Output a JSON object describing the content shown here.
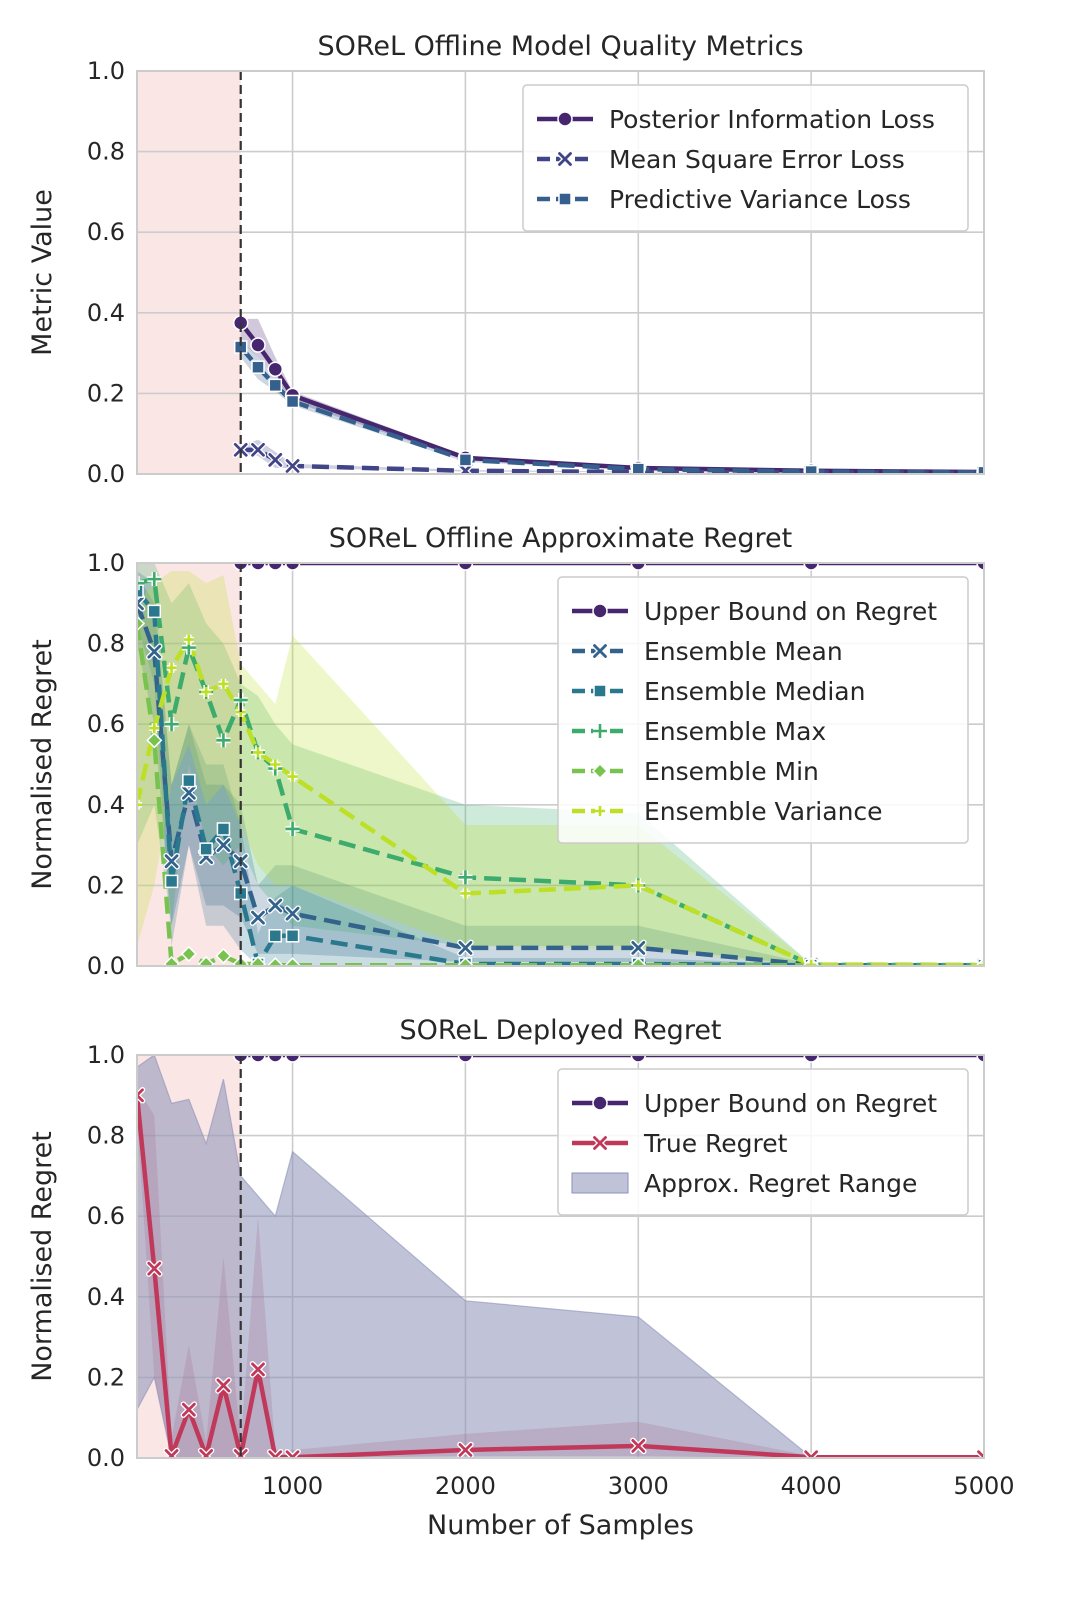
{
  "figure": {
    "xlabel": "Number of Samples",
    "x_ticks": [
      1000,
      2000,
      3000,
      4000,
      5000
    ],
    "xlim": [
      100,
      5000
    ],
    "y_ticks": [
      "0.0",
      "0.2",
      "0.4",
      "0.6",
      "0.8",
      "1.0"
    ],
    "shaded_region_x": [
      100,
      700
    ],
    "vline_x": 700,
    "grid": true,
    "legend_placement": "upper right"
  },
  "chart_data": [
    {
      "type": "line",
      "title": "SOReL Offline Model Quality Metrics",
      "xlabel": "",
      "ylabel": "Metric Value",
      "ylim": [
        0,
        1
      ],
      "series": [
        {
          "name": "Posterior Information Loss",
          "color": "#46276f",
          "marker": "circle",
          "dash": "solid",
          "x": [
            700,
            800,
            900,
            1000,
            2000,
            3000,
            4000,
            5000
          ],
          "y": [
            0.375,
            0.32,
            0.26,
            0.195,
            0.04,
            0.015,
            0.008,
            0.005
          ],
          "band_lo": [
            0.33,
            0.29,
            0.24,
            0.18,
            0.035,
            0.012,
            0.006,
            0.004
          ],
          "band_hi": [
            0.385,
            0.385,
            0.29,
            0.205,
            0.045,
            0.018,
            0.01,
            0.006
          ]
        },
        {
          "name": "Mean Square Error Loss",
          "color": "#414487",
          "marker": "x",
          "dash": "dashed",
          "x": [
            700,
            800,
            900,
            1000,
            2000,
            3000,
            4000,
            5000
          ],
          "y": [
            0.06,
            0.06,
            0.035,
            0.02,
            0.008,
            0.005,
            0.004,
            0.003
          ],
          "band_lo": [
            0.05,
            0.045,
            0.015,
            0.015,
            0.006,
            0.004,
            0.003,
            0.002
          ],
          "band_hi": [
            0.07,
            0.085,
            0.055,
            0.025,
            0.01,
            0.006,
            0.005,
            0.004
          ]
        },
        {
          "name": "Predictive Variance Loss",
          "color": "#355f8d",
          "marker": "square",
          "dash": "dashed",
          "x": [
            700,
            800,
            900,
            1000,
            2000,
            3000,
            4000,
            5000
          ],
          "y": [
            0.315,
            0.265,
            0.22,
            0.18,
            0.035,
            0.012,
            0.006,
            0.004
          ],
          "band_lo": [
            0.29,
            0.235,
            0.205,
            0.17,
            0.03,
            0.01,
            0.005,
            0.003
          ],
          "band_hi": [
            0.335,
            0.29,
            0.24,
            0.19,
            0.04,
            0.014,
            0.007,
            0.005
          ]
        }
      ]
    },
    {
      "type": "line",
      "title": "SOReL Offline Approximate Regret",
      "xlabel": "",
      "ylabel": "Normalised Regret",
      "ylim": [
        0,
        1
      ],
      "series": [
        {
          "name": "Upper Bound on Regret",
          "color": "#46276f",
          "marker": "circle",
          "dash": "solid",
          "x": [
            700,
            800,
            900,
            1000,
            2000,
            3000,
            4000,
            5000
          ],
          "y": [
            1,
            1,
            1,
            1,
            1,
            1,
            1,
            1
          ]
        },
        {
          "name": "Ensemble Mean",
          "color": "#33638d",
          "marker": "x",
          "dash": "dashed",
          "x": [
            100,
            200,
            300,
            400,
            500,
            600,
            700,
            800,
            900,
            1000,
            2000,
            3000,
            4000,
            5000
          ],
          "y": [
            0.9,
            0.78,
            0.26,
            0.43,
            0.27,
            0.3,
            0.26,
            0.12,
            0.15,
            0.13,
            0.045,
            0.045,
            0.003,
            0.002
          ],
          "band_lo": [
            0.8,
            0.6,
            0.1,
            0.3,
            0.15,
            0.15,
            0.12,
            0.03,
            0.03,
            0.03,
            0.01,
            0.01,
            0.0,
            0.0
          ],
          "band_hi": [
            0.97,
            0.9,
            0.45,
            0.6,
            0.45,
            0.45,
            0.4,
            0.2,
            0.25,
            0.25,
            0.1,
            0.1,
            0.005,
            0.004
          ]
        },
        {
          "name": "Ensemble Median",
          "color": "#2a788e",
          "marker": "square",
          "dash": "dashed",
          "x": [
            100,
            200,
            300,
            400,
            500,
            600,
            700,
            800,
            900,
            1000,
            2000,
            3000,
            4000,
            5000
          ],
          "y": [
            0.93,
            0.88,
            0.21,
            0.46,
            0.29,
            0.34,
            0.18,
            0.005,
            0.075,
            0.075,
            0.005,
            0.005,
            0.002,
            0.002
          ],
          "band_lo": [
            0.85,
            0.7,
            0.05,
            0.3,
            0.1,
            0.1,
            0.04,
            0.0,
            0.0,
            0.0,
            0.0,
            0.0,
            0.0,
            0.0
          ],
          "band_hi": [
            0.98,
            0.95,
            0.45,
            0.6,
            0.5,
            0.5,
            0.35,
            0.08,
            0.17,
            0.2,
            0.02,
            0.02,
            0.004,
            0.004
          ]
        },
        {
          "name": "Ensemble Max",
          "color": "#3cab6c",
          "marker": "plus",
          "dash": "dashed",
          "x": [
            100,
            200,
            300,
            400,
            500,
            600,
            700,
            800,
            900,
            1000,
            2000,
            3000,
            4000,
            5000
          ],
          "y": [
            0.95,
            0.96,
            0.6,
            0.79,
            0.68,
            0.56,
            0.66,
            0.53,
            0.49,
            0.34,
            0.22,
            0.2,
            0.003,
            0.002
          ],
          "band_lo": [
            0.3,
            0.4,
            0.1,
            0.5,
            0.3,
            0.25,
            0.3,
            0.2,
            0.15,
            0.1,
            0.05,
            0.05,
            0.0,
            0.0
          ],
          "band_hi": [
            1.0,
            1.0,
            0.9,
            0.95,
            0.85,
            0.8,
            0.7,
            0.67,
            0.6,
            0.55,
            0.4,
            0.38,
            0.005,
            0.004
          ]
        },
        {
          "name": "Ensemble Min",
          "color": "#78c350",
          "marker": "diamond",
          "dash": "dashed",
          "x": [
            100,
            200,
            300,
            400,
            500,
            600,
            700,
            800,
            900,
            1000,
            2000,
            3000,
            4000,
            5000
          ],
          "y": [
            0.85,
            0.56,
            0.005,
            0.03,
            0.005,
            0.025,
            0.005,
            0.005,
            0.002,
            0.002,
            0.002,
            0.002,
            0.002,
            0.002
          ]
        },
        {
          "name": "Ensemble Variance",
          "color": "#bddf26",
          "marker": "plus-small",
          "dash": "dashed",
          "x": [
            100,
            200,
            300,
            400,
            500,
            600,
            700,
            800,
            900,
            1000,
            2000,
            3000,
            4000,
            5000
          ],
          "y": [
            0.4,
            0.59,
            0.74,
            0.81,
            0.68,
            0.7,
            0.63,
            0.53,
            0.5,
            0.47,
            0.18,
            0.2,
            0.003,
            0.002
          ],
          "band_lo": [
            0.05,
            0.2,
            0.45,
            0.55,
            0.4,
            0.45,
            0.35,
            0.25,
            0.2,
            0.2,
            0.05,
            0.04,
            0.0,
            0.0
          ],
          "band_hi": [
            0.9,
            0.95,
            0.98,
            0.98,
            0.95,
            0.97,
            0.75,
            0.7,
            0.65,
            0.82,
            0.35,
            0.35,
            0.005,
            0.004
          ]
        }
      ]
    },
    {
      "type": "line",
      "title": "SOReL Deployed Regret",
      "xlabel": "Number of Samples",
      "ylabel": "Normalised Regret",
      "ylim": [
        0,
        1
      ],
      "series": [
        {
          "name": "Upper Bound on Regret",
          "color": "#46276f",
          "marker": "circle",
          "dash": "solid",
          "x": [
            700,
            800,
            900,
            1000,
            2000,
            3000,
            4000,
            5000
          ],
          "y": [
            1,
            1,
            1,
            1,
            1,
            1,
            1,
            1
          ]
        },
        {
          "name": "True Regret",
          "color": "#c0395a",
          "marker": "x",
          "dash": "solid",
          "x": [
            100,
            200,
            300,
            400,
            500,
            600,
            700,
            800,
            900,
            1000,
            2000,
            3000,
            4000,
            5000
          ],
          "y": [
            0.9,
            0.47,
            0.005,
            0.12,
            0.005,
            0.18,
            0.005,
            0.22,
            0.002,
            0.002,
            0.02,
            0.03,
            0.002,
            0.002
          ],
          "band_lo": [
            0.85,
            0.2,
            0.0,
            0.0,
            0.0,
            0.0,
            0.0,
            0.0,
            0.0,
            0.0,
            0.005,
            0.005,
            0.0,
            0.0
          ],
          "band_hi": [
            0.92,
            0.85,
            0.05,
            0.28,
            0.04,
            0.5,
            0.04,
            0.6,
            0.02,
            0.02,
            0.06,
            0.09,
            0.005,
            0.004
          ]
        },
        {
          "name": "Approx. Regret Range",
          "color": "#8c91b8",
          "kind": "band",
          "x": [
            100,
            200,
            300,
            400,
            500,
            600,
            700,
            800,
            900,
            1000,
            2000,
            3000,
            4000,
            5000
          ],
          "lo": [
            0.12,
            0.2,
            0.0,
            0.0,
            0.0,
            0.0,
            0.0,
            0.0,
            0.0,
            0.0,
            0.0,
            0.0,
            0.0,
            0.0
          ],
          "hi": [
            0.97,
            1.0,
            0.88,
            0.89,
            0.78,
            0.94,
            0.7,
            0.65,
            0.6,
            0.76,
            0.39,
            0.35,
            0.002,
            0.002
          ]
        }
      ]
    }
  ]
}
